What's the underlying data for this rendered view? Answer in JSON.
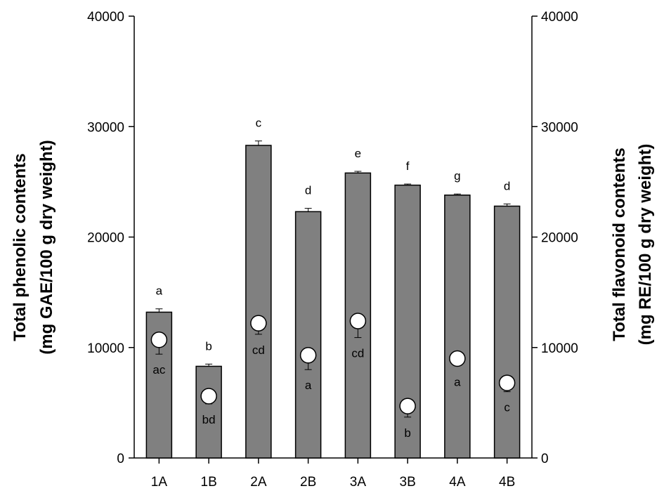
{
  "chart_data": {
    "type": "bar",
    "categories": [
      "1A",
      "1B",
      "2A",
      "2B",
      "3A",
      "3B",
      "4A",
      "4B"
    ],
    "series": [
      {
        "kind": "bar",
        "axis": "left",
        "values": [
          13200,
          8300,
          28300,
          22300,
          25800,
          24700,
          23800,
          22800
        ],
        "errors": [
          300,
          200,
          400,
          300,
          150,
          100,
          100,
          200
        ],
        "letters": [
          "a",
          "b",
          "c",
          "d",
          "e",
          "f",
          "g",
          "d"
        ],
        "color": "#808080"
      },
      {
        "kind": "marker",
        "axis": "right",
        "values": [
          10700,
          5600,
          12200,
          9300,
          12400,
          4700,
          9000,
          6800
        ],
        "errors": [
          1300,
          700,
          1000,
          1300,
          1500,
          1000,
          0,
          800
        ],
        "letters": [
          "ac",
          "bd",
          "cd",
          "a",
          "cd",
          "b",
          "a",
          "c"
        ],
        "color": "#ffffff"
      }
    ],
    "y_left": {
      "label_line1": "Total phenolic contents",
      "label_line2": "(mg GAE/100 g dry weight)",
      "ylim": [
        0,
        40000
      ],
      "ticks": [
        "0",
        "10000",
        "20000",
        "30000",
        "40000"
      ]
    },
    "y_right": {
      "label_line1": "Total flavonoid contents",
      "label_line2": "(mg RE/100 g dry weight)",
      "ylim": [
        0,
        40000
      ],
      "ticks": [
        "0",
        "10000",
        "20000",
        "30000",
        "40000"
      ]
    },
    "grid": false,
    "legend": "none"
  }
}
